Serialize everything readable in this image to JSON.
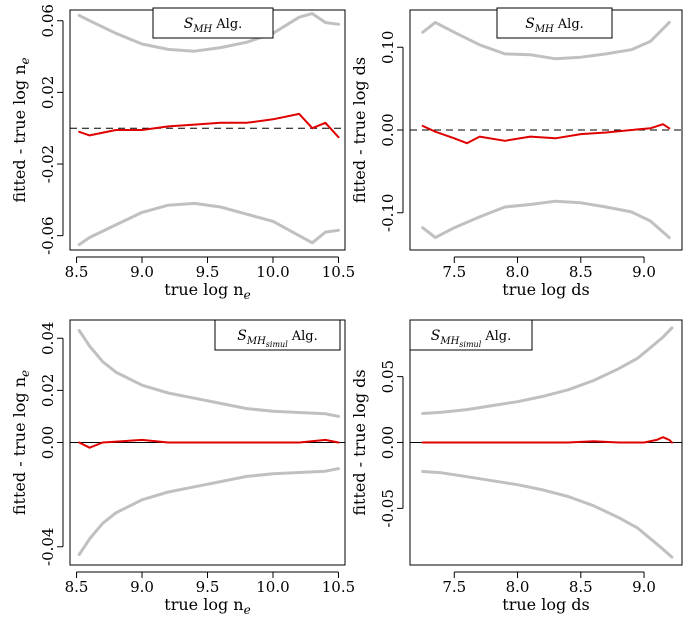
{
  "chart_data": [
    {
      "type": "line",
      "legend": {
        "symbol": "S",
        "subscript": "MH",
        "suffix": "Alg."
      },
      "xlabel": {
        "text": "true log n",
        "sub": "e"
      },
      "ylabel": {
        "text": "fitted - true log n",
        "sub": "e"
      },
      "xlim": [
        8.45,
        10.55
      ],
      "ylim": [
        -0.068,
        0.066
      ],
      "xticks": [
        {
          "v": 8.5,
          "label": "8.5"
        },
        {
          "v": 9.0,
          "label": "9.0"
        },
        {
          "v": 9.5,
          "label": "9.5"
        },
        {
          "v": 10.0,
          "label": "10.0"
        },
        {
          "v": 10.5,
          "label": "10.5"
        }
      ],
      "yticks": [
        {
          "v": -0.06,
          "label": "-0.06"
        },
        {
          "v": -0.02,
          "label": "-0.02"
        },
        {
          "v": 0.02,
          "label": "0.02"
        },
        {
          "v": 0.06,
          "label": "0.06"
        }
      ],
      "reference_line": {
        "y": 0,
        "style": "dashed"
      },
      "series": [
        {
          "color": "#c0c0c0",
          "x": [
            8.52,
            8.6,
            8.8,
            9.0,
            9.2,
            9.4,
            9.6,
            9.8,
            10.0,
            10.2,
            10.3,
            10.4,
            10.5
          ],
          "values": [
            0.063,
            0.06,
            0.053,
            0.047,
            0.044,
            0.043,
            0.045,
            0.048,
            0.053,
            0.062,
            0.064,
            0.059,
            0.058
          ]
        },
        {
          "color": "#e00000",
          "x": [
            8.52,
            8.6,
            8.8,
            9.0,
            9.2,
            9.4,
            9.6,
            9.8,
            10.0,
            10.2,
            10.3,
            10.4,
            10.5
          ],
          "values": [
            -0.002,
            -0.004,
            -0.001,
            -0.001,
            0.001,
            0.002,
            0.003,
            0.003,
            0.005,
            0.008,
            0.0,
            0.003,
            -0.005
          ]
        },
        {
          "color": "#c0c0c0",
          "x": [
            8.52,
            8.6,
            8.8,
            9.0,
            9.2,
            9.4,
            9.6,
            9.8,
            10.0,
            10.2,
            10.3,
            10.4,
            10.5
          ],
          "values": [
            -0.065,
            -0.061,
            -0.054,
            -0.047,
            -0.043,
            -0.042,
            -0.044,
            -0.048,
            -0.052,
            -0.06,
            -0.064,
            -0.058,
            -0.057
          ]
        }
      ]
    },
    {
      "type": "line",
      "legend": {
        "symbol": "S",
        "subscript": "MH",
        "suffix": "Alg."
      },
      "xlabel": {
        "text": "true log ds",
        "sub": ""
      },
      "ylabel": {
        "text": "fitted - true log ds",
        "sub": ""
      },
      "xlim": [
        7.15,
        9.3
      ],
      "ylim": [
        -0.145,
        0.145
      ],
      "xticks": [
        {
          "v": 7.5,
          "label": "7.5"
        },
        {
          "v": 8.0,
          "label": "8.0"
        },
        {
          "v": 8.5,
          "label": "8.5"
        },
        {
          "v": 9.0,
          "label": "9.0"
        }
      ],
      "yticks": [
        {
          "v": -0.1,
          "label": "-0.10"
        },
        {
          "v": 0.0,
          "label": "0.00"
        },
        {
          "v": 0.1,
          "label": "0.10"
        }
      ],
      "reference_line": {
        "y": 0,
        "style": "dashed"
      },
      "series": [
        {
          "color": "#c0c0c0",
          "x": [
            7.25,
            7.35,
            7.5,
            7.7,
            7.9,
            8.1,
            8.3,
            8.5,
            8.7,
            8.9,
            9.05,
            9.2
          ],
          "values": [
            0.118,
            0.13,
            0.118,
            0.103,
            0.092,
            0.091,
            0.086,
            0.088,
            0.092,
            0.097,
            0.107,
            0.13
          ]
        },
        {
          "color": "#e00000",
          "x": [
            7.25,
            7.35,
            7.5,
            7.6,
            7.7,
            7.9,
            8.1,
            8.3,
            8.5,
            8.7,
            8.9,
            9.05,
            9.15,
            9.2
          ],
          "values": [
            0.005,
            -0.002,
            -0.01,
            -0.016,
            -0.008,
            -0.013,
            -0.008,
            -0.01,
            -0.005,
            -0.003,
            0.0,
            0.002,
            0.007,
            0.002
          ]
        },
        {
          "color": "#c0c0c0",
          "x": [
            7.25,
            7.35,
            7.5,
            7.7,
            7.9,
            8.1,
            8.3,
            8.5,
            8.7,
            8.9,
            9.05,
            9.2
          ],
          "values": [
            -0.118,
            -0.13,
            -0.118,
            -0.105,
            -0.093,
            -0.09,
            -0.086,
            -0.088,
            -0.093,
            -0.099,
            -0.11,
            -0.13
          ]
        }
      ]
    },
    {
      "type": "line",
      "legend": {
        "symbol": "S",
        "subscript": "MH",
        "subsub": "simul",
        "suffix": "Alg."
      },
      "xlabel": {
        "text": "true log n",
        "sub": "e"
      },
      "ylabel": {
        "text": "fitted - true log n",
        "sub": "e"
      },
      "xlim": [
        8.45,
        10.55
      ],
      "ylim": [
        -0.047,
        0.047
      ],
      "xticks": [
        {
          "v": 8.5,
          "label": "8.5"
        },
        {
          "v": 9.0,
          "label": "9.0"
        },
        {
          "v": 9.5,
          "label": "9.5"
        },
        {
          "v": 10.0,
          "label": "10.0"
        },
        {
          "v": 10.5,
          "label": "10.5"
        }
      ],
      "yticks": [
        {
          "v": -0.04,
          "label": "-0.04"
        },
        {
          "v": 0.0,
          "label": "0.00"
        },
        {
          "v": 0.02,
          "label": "0.02"
        },
        {
          "v": 0.04,
          "label": "0.04"
        }
      ],
      "reference_line": {
        "y": 0,
        "style": "solid"
      },
      "series": [
        {
          "color": "#c0c0c0",
          "x": [
            8.52,
            8.6,
            8.7,
            8.8,
            9.0,
            9.2,
            9.4,
            9.6,
            9.8,
            10.0,
            10.2,
            10.4,
            10.5
          ],
          "values": [
            0.043,
            0.037,
            0.031,
            0.027,
            0.022,
            0.019,
            0.017,
            0.015,
            0.013,
            0.012,
            0.0115,
            0.011,
            0.01
          ]
        },
        {
          "color": "#e00000",
          "x": [
            8.52,
            8.6,
            8.7,
            9.0,
            9.2,
            9.4,
            9.6,
            9.8,
            10.0,
            10.2,
            10.4,
            10.5
          ],
          "values": [
            0.0,
            -0.002,
            0.0,
            0.001,
            0.0,
            0.0,
            0.0,
            0.0,
            0.0,
            0.0,
            0.001,
            0.0
          ]
        },
        {
          "color": "#c0c0c0",
          "x": [
            8.52,
            8.6,
            8.7,
            8.8,
            9.0,
            9.2,
            9.4,
            9.6,
            9.8,
            10.0,
            10.2,
            10.4,
            10.5
          ],
          "values": [
            -0.043,
            -0.037,
            -0.031,
            -0.027,
            -0.022,
            -0.019,
            -0.017,
            -0.015,
            -0.013,
            -0.012,
            -0.0115,
            -0.011,
            -0.01
          ]
        }
      ]
    },
    {
      "type": "line",
      "legend": {
        "symbol": "S",
        "subscript": "MH",
        "subsub": "simul",
        "suffix": "Alg."
      },
      "xlabel": {
        "text": "true log ds",
        "sub": ""
      },
      "ylabel": {
        "text": "fitted - true log ds",
        "sub": ""
      },
      "xlim": [
        7.15,
        9.3
      ],
      "ylim": [
        -0.093,
        0.093
      ],
      "xticks": [
        {
          "v": 7.5,
          "label": "7.5"
        },
        {
          "v": 8.0,
          "label": "8.0"
        },
        {
          "v": 8.5,
          "label": "8.5"
        },
        {
          "v": 9.0,
          "label": "9.0"
        }
      ],
      "yticks": [
        {
          "v": -0.05,
          "label": "-0.05"
        },
        {
          "v": 0.0,
          "label": "0.00"
        },
        {
          "v": 0.05,
          "label": "0.05"
        }
      ],
      "reference_line": {
        "y": 0,
        "style": "solid"
      },
      "series": [
        {
          "color": "#c0c0c0",
          "x": [
            7.25,
            7.4,
            7.6,
            7.8,
            8.0,
            8.2,
            8.4,
            8.6,
            8.8,
            8.95,
            9.05,
            9.15,
            9.22
          ],
          "values": [
            0.022,
            0.023,
            0.025,
            0.028,
            0.031,
            0.035,
            0.04,
            0.047,
            0.056,
            0.064,
            0.072,
            0.08,
            0.087
          ]
        },
        {
          "color": "#e00000",
          "x": [
            7.25,
            7.5,
            7.8,
            8.1,
            8.4,
            8.6,
            8.8,
            9.0,
            9.1,
            9.15,
            9.2,
            9.22
          ],
          "values": [
            0.0,
            0.0,
            0.0,
            0.0,
            0.0,
            0.001,
            0.0,
            0.0,
            0.002,
            0.004,
            0.002,
            0.0
          ]
        },
        {
          "color": "#c0c0c0",
          "x": [
            7.25,
            7.4,
            7.6,
            7.8,
            8.0,
            8.2,
            8.4,
            8.6,
            8.8,
            8.95,
            9.05,
            9.15,
            9.22
          ],
          "values": [
            -0.022,
            -0.023,
            -0.026,
            -0.029,
            -0.032,
            -0.036,
            -0.041,
            -0.048,
            -0.057,
            -0.065,
            -0.073,
            -0.081,
            -0.087
          ]
        }
      ]
    }
  ]
}
